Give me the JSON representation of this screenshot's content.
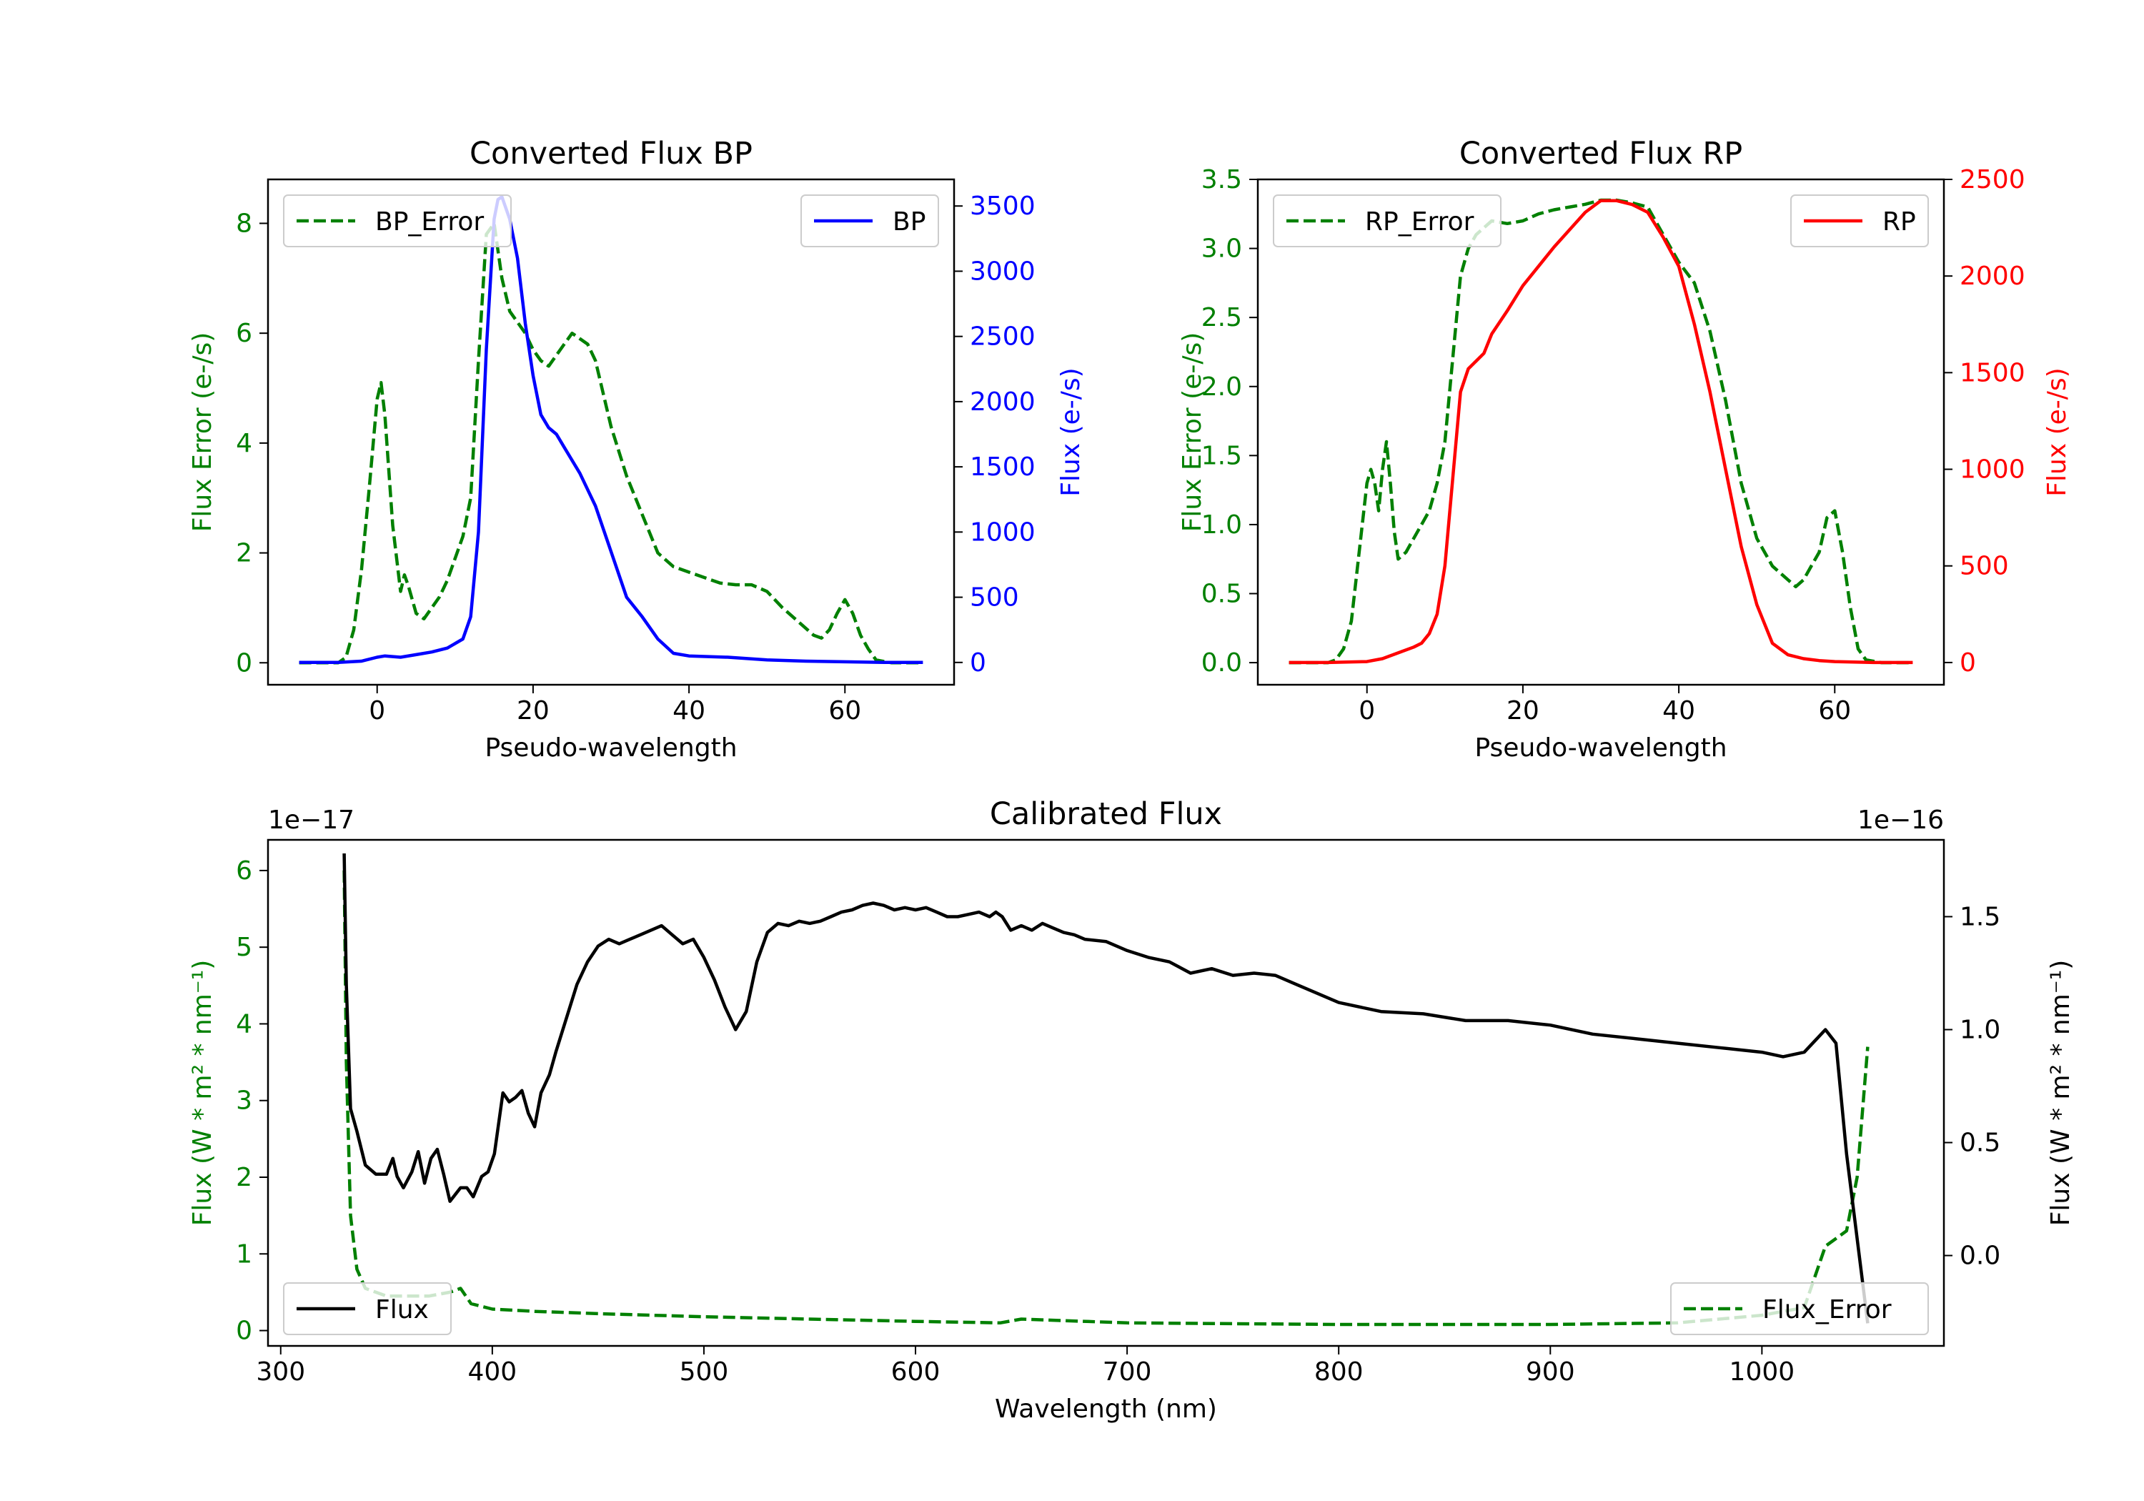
{
  "colors": {
    "error": "#008000",
    "bp": "#0000ff",
    "rp": "#ff0000",
    "flux": "#000000",
    "axis": "#000000"
  },
  "chart_data": [
    {
      "type": "line",
      "title": "Converted Flux BP",
      "xlabel": "Pseudo-wavelength",
      "ylabel_left": "Flux Error (e-/s)",
      "ylabel_right": "Flux (e-/s)",
      "xlim": [
        -14,
        74
      ],
      "ylim_left": [
        -0.4,
        8.8
      ],
      "ylim_right": [
        -171,
        3704
      ],
      "xticks": [
        0,
        20,
        40,
        60
      ],
      "yticks_left": [
        0,
        2,
        4,
        6,
        8
      ],
      "yticks_right": [
        0,
        500,
        1000,
        1500,
        2000,
        2500,
        3000,
        3500
      ],
      "legend_left": "BP_Error",
      "legend_right": "BP",
      "series": [
        {
          "name": "BP_Error",
          "axis": "left",
          "style": "dashed",
          "x": [
            -10,
            -5,
            -4,
            -3,
            -2,
            -1,
            0,
            0.5,
            1,
            2,
            3,
            3.5,
            4,
            5,
            6,
            7,
            8,
            9,
            10,
            11,
            12,
            13,
            14,
            15,
            16,
            17,
            18,
            19,
            20,
            21,
            22,
            23,
            24,
            25,
            26,
            27,
            28,
            30,
            32,
            34,
            36,
            38,
            40,
            42,
            44,
            46,
            48,
            50,
            52,
            54,
            56,
            57,
            58,
            59,
            60,
            61,
            62,
            63,
            64,
            66,
            70
          ],
          "values": [
            0,
            0,
            0.1,
            0.6,
            1.7,
            3.2,
            4.8,
            5.1,
            4.5,
            2.5,
            1.3,
            1.6,
            1.4,
            0.9,
            0.8,
            1.0,
            1.2,
            1.5,
            1.9,
            2.3,
            3.0,
            5.5,
            7.8,
            8.0,
            7.0,
            6.4,
            6.2,
            6.0,
            5.7,
            5.5,
            5.4,
            5.6,
            5.8,
            6.0,
            5.9,
            5.8,
            5.5,
            4.3,
            3.4,
            2.7,
            2.0,
            1.75,
            1.65,
            1.55,
            1.45,
            1.42,
            1.42,
            1.3,
            1.0,
            0.75,
            0.5,
            0.45,
            0.6,
            0.9,
            1.15,
            0.9,
            0.5,
            0.25,
            0.05,
            0,
            0
          ]
        },
        {
          "name": "BP",
          "axis": "right",
          "style": "solid",
          "x": [
            -10,
            -5,
            -2,
            0,
            1,
            3,
            5,
            7,
            9,
            11,
            12,
            13,
            14,
            15,
            15.5,
            16,
            17,
            18,
            19,
            20,
            21,
            22,
            23,
            24,
            26,
            28,
            30,
            32,
            34,
            36,
            38,
            40,
            45,
            50,
            55,
            60,
            65,
            70
          ],
          "values": [
            0,
            0,
            10,
            40,
            50,
            40,
            60,
            80,
            110,
            180,
            350,
            1000,
            2400,
            3400,
            3550,
            3570,
            3400,
            3100,
            2600,
            2200,
            1900,
            1800,
            1750,
            1650,
            1450,
            1200,
            850,
            500,
            350,
            180,
            70,
            50,
            40,
            20,
            10,
            5,
            0,
            0
          ]
        }
      ]
    },
    {
      "type": "line",
      "title": "Converted Flux RP",
      "xlabel": "Pseudo-wavelength",
      "ylabel_left": "Flux Error (e-/s)",
      "ylabel_right": "Flux (e-/s)",
      "xlim": [
        -14,
        74
      ],
      "ylim_left": [
        -0.16,
        3.5
      ],
      "ylim_right": [
        -115,
        2500
      ],
      "xticks": [
        0,
        20,
        40,
        60
      ],
      "yticks_left": [
        0.0,
        0.5,
        1.0,
        1.5,
        2.0,
        2.5,
        3.0,
        3.5
      ],
      "yticks_right": [
        0,
        500,
        1000,
        1500,
        2000,
        2500
      ],
      "legend_left": "RP_Error",
      "legend_right": "RP",
      "series": [
        {
          "name": "RP_Error",
          "axis": "left",
          "style": "dashed",
          "x": [
            -10,
            -5,
            -4,
            -3,
            -2,
            -1,
            0,
            0.5,
            1,
            1.5,
            2,
            2.5,
            3,
            3.5,
            4,
            5,
            6,
            7,
            8,
            9,
            10,
            11,
            12,
            13,
            14,
            15,
            16,
            18,
            20,
            22,
            24,
            26,
            28,
            30,
            32,
            34,
            36,
            38,
            40,
            42,
            44,
            46,
            48,
            50,
            52,
            54,
            55,
            56,
            57,
            58,
            59,
            60,
            61,
            62,
            63,
            64,
            66,
            70
          ],
          "values": [
            0,
            0,
            0.02,
            0.1,
            0.3,
            0.8,
            1.3,
            1.4,
            1.3,
            1.1,
            1.4,
            1.6,
            1.3,
            0.95,
            0.75,
            0.8,
            0.9,
            1.0,
            1.1,
            1.3,
            1.6,
            2.2,
            2.8,
            3.0,
            3.1,
            3.15,
            3.2,
            3.18,
            3.2,
            3.25,
            3.28,
            3.3,
            3.32,
            3.35,
            3.35,
            3.33,
            3.3,
            3.1,
            2.9,
            2.75,
            2.4,
            1.9,
            1.3,
            0.9,
            0.7,
            0.6,
            0.55,
            0.6,
            0.7,
            0.8,
            1.05,
            1.1,
            0.8,
            0.4,
            0.1,
            0.02,
            0,
            0
          ]
        },
        {
          "name": "RP",
          "axis": "right",
          "style": "solid",
          "x": [
            -10,
            -5,
            0,
            2,
            4,
            6,
            7,
            8,
            9,
            10,
            11,
            12,
            13,
            14,
            15,
            16,
            18,
            20,
            22,
            24,
            26,
            28,
            30,
            32,
            34,
            36,
            38,
            40,
            42,
            44,
            46,
            48,
            50,
            52,
            54,
            56,
            58,
            60,
            65,
            70
          ],
          "values": [
            0,
            0,
            5,
            20,
            50,
            80,
            100,
            150,
            250,
            500,
            950,
            1400,
            1520,
            1560,
            1600,
            1700,
            1820,
            1950,
            2050,
            2150,
            2240,
            2330,
            2390,
            2390,
            2370,
            2330,
            2200,
            2050,
            1750,
            1400,
            1000,
            600,
            300,
            100,
            40,
            20,
            10,
            5,
            0,
            0
          ]
        }
      ]
    },
    {
      "type": "line",
      "title": "Calibrated Flux",
      "xlabel": "Wavelength (nm)",
      "ylabel_left": "Flux (W * m² * nm⁻¹)",
      "ylabel_right": "Flux (W * m² * nm⁻¹)",
      "offset_left": "1e−17",
      "offset_right": "1e−16",
      "xlim": [
        294,
        1086
      ],
      "ylim_left": [
        -0.2,
        6.4
      ],
      "ylim_right": [
        -0.4,
        1.84
      ],
      "xticks": [
        300,
        400,
        500,
        600,
        700,
        800,
        900,
        1000
      ],
      "yticks_left": [
        0,
        1,
        2,
        3,
        4,
        5,
        6
      ],
      "yticks_right": [
        0.0,
        0.5,
        1.0,
        1.5
      ],
      "legend_left": "Flux",
      "legend_right": "Flux_Error",
      "series": [
        {
          "name": "Flux_Error",
          "axis": "left",
          "style": "dashed",
          "x": [
            330,
            331,
            333,
            336,
            340,
            345,
            350,
            360,
            370,
            380,
            385,
            390,
            400,
            420,
            450,
            500,
            550,
            600,
            640,
            650,
            700,
            800,
            900,
            960,
            1000,
            1020,
            1025,
            1030,
            1035,
            1040,
            1045,
            1050
          ],
          "values": [
            6.0,
            3.5,
            1.5,
            0.8,
            0.55,
            0.5,
            0.45,
            0.45,
            0.45,
            0.5,
            0.55,
            0.35,
            0.28,
            0.25,
            0.22,
            0.18,
            0.15,
            0.12,
            0.1,
            0.15,
            0.1,
            0.08,
            0.08,
            0.1,
            0.2,
            0.3,
            0.7,
            1.1,
            1.2,
            1.3,
            2.0,
            3.7
          ]
        },
        {
          "name": "Flux",
          "axis": "right",
          "style": "solid",
          "x": [
            330,
            331,
            333,
            336,
            340,
            345,
            350,
            353,
            355,
            358,
            362,
            365,
            368,
            371,
            374,
            377,
            380,
            385,
            388,
            391,
            395,
            398,
            401,
            405,
            408,
            411,
            414,
            417,
            420,
            423,
            427,
            430,
            435,
            440,
            445,
            450,
            455,
            460,
            465,
            470,
            475,
            480,
            485,
            490,
            495,
            500,
            505,
            510,
            515,
            520,
            525,
            530,
            535,
            540,
            545,
            550,
            555,
            560,
            565,
            570,
            575,
            580,
            585,
            590,
            595,
            600,
            605,
            610,
            615,
            620,
            625,
            630,
            635,
            638,
            641,
            645,
            650,
            655,
            660,
            665,
            670,
            675,
            680,
            690,
            700,
            710,
            720,
            730,
            740,
            750,
            760,
            770,
            780,
            790,
            800,
            820,
            840,
            860,
            880,
            900,
            920,
            940,
            960,
            980,
            1000,
            1010,
            1020,
            1030,
            1035,
            1040,
            1050
          ],
          "values": [
            1.78,
            1.2,
            0.65,
            0.55,
            0.4,
            0.36,
            0.36,
            0.43,
            0.35,
            0.3,
            0.37,
            0.46,
            0.32,
            0.43,
            0.47,
            0.36,
            0.24,
            0.3,
            0.3,
            0.26,
            0.35,
            0.37,
            0.45,
            0.72,
            0.68,
            0.7,
            0.73,
            0.63,
            0.57,
            0.72,
            0.8,
            0.9,
            1.05,
            1.2,
            1.3,
            1.37,
            1.4,
            1.38,
            1.4,
            1.42,
            1.44,
            1.46,
            1.42,
            1.38,
            1.4,
            1.32,
            1.22,
            1.1,
            1.0,
            1.08,
            1.3,
            1.43,
            1.47,
            1.46,
            1.48,
            1.47,
            1.48,
            1.5,
            1.52,
            1.53,
            1.55,
            1.56,
            1.55,
            1.53,
            1.54,
            1.53,
            1.54,
            1.52,
            1.5,
            1.5,
            1.51,
            1.52,
            1.5,
            1.52,
            1.5,
            1.44,
            1.46,
            1.44,
            1.47,
            1.45,
            1.43,
            1.42,
            1.4,
            1.39,
            1.35,
            1.32,
            1.3,
            1.25,
            1.27,
            1.24,
            1.25,
            1.24,
            1.2,
            1.16,
            1.12,
            1.08,
            1.07,
            1.04,
            1.04,
            1.02,
            0.98,
            0.96,
            0.94,
            0.92,
            0.9,
            0.88,
            0.9,
            1.0,
            0.94,
            0.45,
            -0.3
          ]
        }
      ]
    }
  ]
}
